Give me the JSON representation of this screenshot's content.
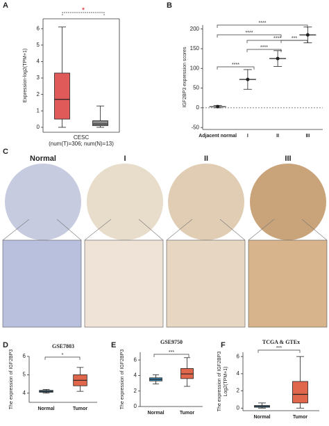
{
  "chart_data": [
    {
      "type": "box",
      "label": "A",
      "ylabel": "Expression-log2(TPM+1)",
      "xlabel": "CESC",
      "subxlabel": "(num(T)=306; num(N)=13)",
      "boxes": [
        {
          "low": 0,
          "q1": 0.5,
          "median": 1.7,
          "q3": 3.3,
          "high": 6.1,
          "color": "#e05a5a"
        },
        {
          "low": 0,
          "q1": 0.1,
          "median": 0.2,
          "q3": 0.4,
          "high": 1.3,
          "color": "#8c8c8c"
        }
      ],
      "ylim": [
        -0.3,
        6.6
      ],
      "yticks": [
        0,
        1,
        2,
        3,
        4,
        5,
        6
      ],
      "significance": [
        "*"
      ]
    },
    {
      "type": "dot",
      "label": "B",
      "ylabel": "IGF2BP3 expression scores",
      "categories": [
        "Adjacent normal",
        "I",
        "II",
        "III"
      ],
      "means": [
        3,
        72,
        125,
        185
      ],
      "errors": [
        3,
        25,
        20,
        20
      ],
      "color": "#222222",
      "ylim": [
        -55,
        210
      ],
      "yticks": [
        -50,
        0,
        50,
        100,
        150,
        200
      ],
      "significance": [
        "****",
        "****",
        "****",
        "****",
        "****",
        "***"
      ]
    },
    {
      "type": "box",
      "label": "D",
      "title": "GSE7803",
      "ylabel": "The expression of IGF2BP3",
      "categories": [
        "Normal",
        "Tumor"
      ],
      "boxes": [
        {
          "low": 4.0,
          "q1": 4.05,
          "median": 4.1,
          "q3": 4.15,
          "high": 4.2,
          "color": "#3d8fbf"
        },
        {
          "low": 4.1,
          "q1": 4.4,
          "median": 4.7,
          "q3": 5.0,
          "high": 5.4,
          "color": "#e0674c"
        }
      ],
      "ylim": [
        3.5,
        6
      ],
      "yticks": [
        4,
        5,
        6
      ],
      "significance": [
        "*"
      ]
    },
    {
      "type": "box",
      "label": "E",
      "title": "GSE9750",
      "ylabel": "The expression of IGF2BP3",
      "categories": [
        "Normal",
        "Tumor"
      ],
      "boxes": [
        {
          "low": 2.9,
          "q1": 3.3,
          "median": 3.5,
          "q3": 3.7,
          "high": 4.1,
          "color": "#3d8fbf"
        },
        {
          "low": 2.6,
          "q1": 3.6,
          "median": 4.2,
          "q3": 4.9,
          "high": 6.3,
          "color": "#e0674c"
        }
      ],
      "ylim": [
        0,
        7
      ],
      "yticks": [
        0,
        2,
        4,
        6
      ],
      "significance": [
        "***"
      ]
    },
    {
      "type": "box",
      "label": "F",
      "title": "TCGA & GTEx",
      "ylabel": "The expression of IGF2BP3",
      "subylabel": "Log2(TPM+1)",
      "categories": [
        "Normal",
        "Tumor"
      ],
      "boxes": [
        {
          "low": 0,
          "q1": 0.1,
          "median": 0.2,
          "q3": 0.3,
          "high": 0.6,
          "color": "#3d8fbf"
        },
        {
          "low": 0,
          "q1": 0.6,
          "median": 1.6,
          "q3": 3.1,
          "high": 6.0,
          "color": "#e0674c"
        }
      ],
      "ylim": [
        -0.3,
        6.5
      ],
      "yticks": [
        0,
        2,
        4,
        6
      ],
      "significance": [
        "***"
      ]
    }
  ],
  "histology": {
    "label": "C",
    "columns": [
      "Normal",
      "I",
      "II",
      "III"
    ]
  }
}
